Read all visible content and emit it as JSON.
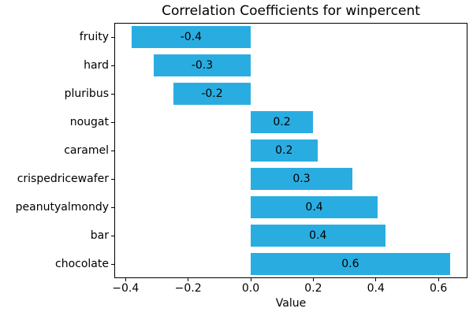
{
  "figure": {
    "background": "#ffffff",
    "text_color": "#000000",
    "accent_color": "#29ade1"
  },
  "chart_data": {
    "type": "bar",
    "orientation": "horizontal",
    "title": "Correlation Coefficients for winpercent",
    "xlabel": "Value",
    "ylabel": "",
    "categories": [
      "fruity",
      "hard",
      "pluribus",
      "nougat",
      "caramel",
      "crispedricewafer",
      "peanutyalmondy",
      "bar",
      "chocolate"
    ],
    "values": [
      -0.381,
      -0.31,
      -0.247,
      0.199,
      0.213,
      0.325,
      0.406,
      0.43,
      0.637
    ],
    "bar_labels": [
      "-0.4",
      "-0.3",
      "-0.2",
      "0.2",
      "0.2",
      "0.3",
      "0.4",
      "0.4",
      "0.6"
    ],
    "xlim": [
      -0.436,
      0.693
    ],
    "xticks": [
      -0.4,
      -0.2,
      0.0,
      0.2,
      0.4,
      0.6
    ],
    "xtick_labels": [
      "−0.4",
      "−0.2",
      "0.0",
      "0.2",
      "0.4",
      "0.6"
    ],
    "bar_color": "#29ade1",
    "bar_width_fraction": 0.8,
    "grid": false,
    "legend_position": null
  }
}
